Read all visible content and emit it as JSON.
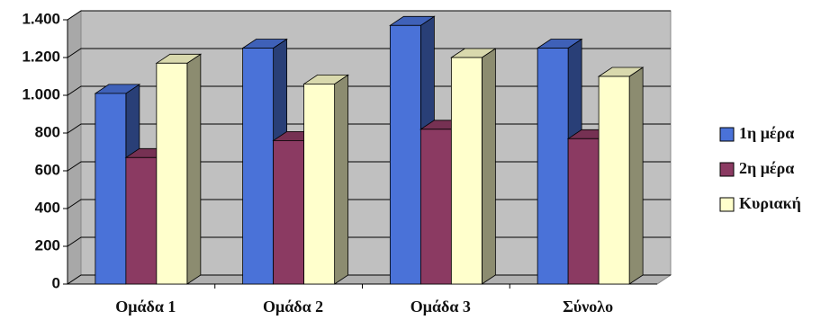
{
  "chart_data": {
    "type": "bar3d",
    "categories": [
      "Ομάδα 1",
      "Ομάδα 2",
      "Ομάδα 3",
      "Σύνολο"
    ],
    "series": [
      {
        "name": "1η μέρα",
        "color": "#4a72d8",
        "values": [
          1010,
          1250,
          1370,
          1250
        ]
      },
      {
        "name": "2η μέρα",
        "color": "#8b3a62",
        "values": [
          670,
          760,
          820,
          770
        ]
      },
      {
        "name": "Κυριακή",
        "color": "#ffffcc",
        "values": [
          1170,
          1060,
          1200,
          1100
        ]
      }
    ],
    "ylim": [
      0,
      1400
    ],
    "yticks": [
      0,
      200,
      400,
      600,
      800,
      {
        "value": 1000,
        "label": "1.000"
      },
      {
        "value": 1200,
        "label": "1.200"
      },
      {
        "value": 1400,
        "label": "1.400"
      }
    ],
    "grid": true,
    "legend": "right"
  }
}
